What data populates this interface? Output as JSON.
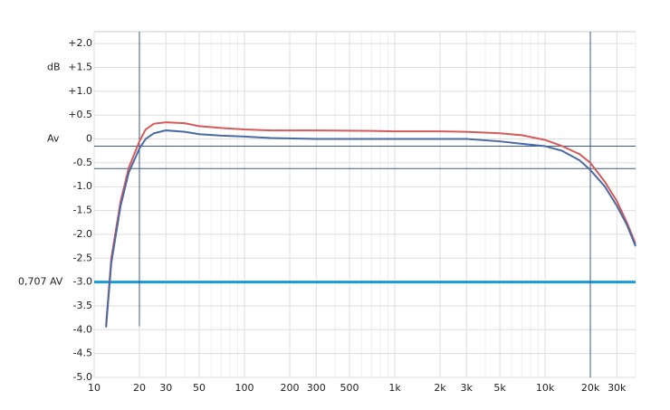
{
  "chart_data": {
    "type": "line",
    "xscale": "log",
    "grid": true,
    "xlim": [
      10,
      40000
    ],
    "ylim": [
      -5,
      2.25
    ],
    "xticks": [
      10,
      20,
      30,
      50,
      100,
      200,
      300,
      500,
      {
        "value": 1000,
        "label": "1k"
      },
      {
        "value": 2000,
        "label": "2k"
      },
      {
        "value": 3000,
        "label": "3k"
      },
      {
        "value": 5000,
        "label": "5k"
      },
      {
        "value": 10000,
        "label": "10k"
      },
      {
        "value": 20000,
        "label": "20k"
      },
      {
        "value": 30000,
        "label": "30k"
      }
    ],
    "xminor": [
      40,
      60,
      70,
      80,
      90,
      400,
      600,
      700,
      800,
      900,
      4000,
      6000,
      7000,
      8000,
      9000,
      40000
    ],
    "yticks": [
      {
        "value": 2,
        "label": "+2.0"
      },
      {
        "value": 1.5,
        "label": "+1.5"
      },
      {
        "value": 1,
        "label": "+1.0"
      },
      {
        "value": 0.5,
        "label": "+0.5"
      },
      0,
      {
        "value": -0.5,
        "label": "-0.5"
      },
      {
        "value": -1,
        "label": "-1.0"
      },
      {
        "value": -1.5,
        "label": "-1.5"
      },
      {
        "value": -2,
        "label": "-2.0"
      },
      {
        "value": -2.5,
        "label": "-2.5"
      },
      {
        "value": -3,
        "label": "-3.0"
      },
      {
        "value": -3.5,
        "label": "-3.5"
      },
      {
        "value": -4,
        "label": "-4.0"
      },
      {
        "value": -4.5,
        "label": "-4.5"
      },
      {
        "value": -5,
        "label": "-5.0"
      }
    ],
    "annotations": [
      {
        "text": "dB",
        "y": 1.5
      },
      {
        "text": "Av",
        "y": 0
      },
      {
        "text": "0,707 AV",
        "y": -3
      }
    ],
    "hlines": [
      {
        "value": -3,
        "color": "#1a9ad6",
        "width": 3
      },
      {
        "value": -0.15,
        "color": "#3a5a8a",
        "width": 1
      },
      {
        "value": -0.62,
        "color": "#3a5a8a",
        "width": 1
      }
    ],
    "vlines": [
      {
        "value": 20,
        "y_end": -3.93,
        "color": "#3a5a8a"
      },
      {
        "value": 20000,
        "y_end": -5,
        "color": "#3a5a8a"
      }
    ],
    "series": [
      {
        "color": "#d65a5a",
        "x": [
          12,
          13,
          15,
          17,
          20,
          22,
          25,
          30,
          40,
          50,
          70,
          100,
          150,
          300,
          700,
          1000,
          2000,
          3000,
          5000,
          7000,
          10000,
          13000,
          17000,
          20000,
          25000,
          30000,
          35000,
          40000
        ],
        "values": [
          -3.9,
          -2.5,
          -1.3,
          -0.6,
          -0.05,
          0.2,
          0.32,
          0.35,
          0.33,
          0.27,
          0.23,
          0.2,
          0.18,
          0.18,
          0.17,
          0.16,
          0.16,
          0.15,
          0.12,
          0.08,
          -0.02,
          -0.15,
          -0.32,
          -0.5,
          -0.9,
          -1.3,
          -1.75,
          -2.2
        ]
      },
      {
        "color": "#4a6aa5",
        "x": [
          12,
          13,
          15,
          17,
          20,
          22,
          25,
          30,
          40,
          50,
          70,
          100,
          150,
          300,
          1000,
          3000,
          5000,
          7000,
          10000,
          13000,
          17000,
          20000,
          25000,
          30000,
          35000,
          40000
        ],
        "values": [
          -3.95,
          -2.6,
          -1.4,
          -0.7,
          -0.2,
          0.0,
          0.12,
          0.18,
          0.15,
          0.1,
          0.07,
          0.05,
          0.02,
          0.0,
          0.0,
          0.0,
          -0.05,
          -0.1,
          -0.15,
          -0.25,
          -0.45,
          -0.65,
          -1.0,
          -1.4,
          -1.8,
          -2.25
        ]
      }
    ]
  }
}
